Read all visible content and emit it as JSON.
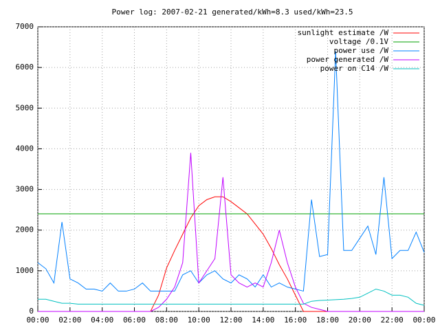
{
  "chart_data": {
    "type": "line",
    "title": "Power log: 2007-02-21 generated/kWh=8.3 used/kWh=23.5",
    "x": [
      0,
      0.5,
      1,
      1.5,
      2,
      2.5,
      3,
      3.5,
      4,
      4.5,
      5,
      5.5,
      6,
      6.5,
      7,
      7.5,
      8,
      8.5,
      9,
      9.5,
      10,
      10.5,
      11,
      11.5,
      12,
      12.5,
      13,
      13.5,
      14,
      14.5,
      15,
      15.5,
      16,
      16.5,
      17,
      17.5,
      18,
      18.5,
      19,
      19.5,
      20,
      20.5,
      21,
      21.5,
      22,
      22.5,
      23,
      23.5,
      24
    ],
    "xlim": [
      0,
      24
    ],
    "xticks": [
      {
        "value": 0,
        "label": "00:00"
      },
      {
        "value": 2,
        "label": "02:00"
      },
      {
        "value": 4,
        "label": "04:00"
      },
      {
        "value": 6,
        "label": "06:00"
      },
      {
        "value": 8,
        "label": "08:00"
      },
      {
        "value": 10,
        "label": "10:00"
      },
      {
        "value": 12,
        "label": "12:00"
      },
      {
        "value": 14,
        "label": "14:00"
      },
      {
        "value": 16,
        "label": "16:00"
      },
      {
        "value": 18,
        "label": "18:00"
      },
      {
        "value": 20,
        "label": "20:00"
      },
      {
        "value": 22,
        "label": "22:00"
      },
      {
        "value": 24,
        "label": "00:00"
      }
    ],
    "ylim": [
      0,
      7000
    ],
    "yticks": [
      0,
      1000,
      2000,
      3000,
      4000,
      5000,
      6000,
      7000
    ],
    "grid": true,
    "legend": "top-right",
    "series": [
      {
        "name": "sunlight estimate /W",
        "color": "#ff0000",
        "values": [
          0,
          0,
          0,
          0,
          0,
          0,
          0,
          0,
          0,
          0,
          0,
          0,
          0,
          0,
          0,
          400,
          1070,
          1500,
          1900,
          2300,
          2600,
          2750,
          2820,
          2820,
          2700,
          2550,
          2400,
          2150,
          1900,
          1550,
          1150,
          800,
          400,
          0,
          0,
          0,
          0,
          0,
          0,
          0,
          0,
          0,
          0,
          0,
          0,
          0,
          0,
          0,
          0
        ]
      },
      {
        "name": "voltage /0.1V",
        "color": "#00a000",
        "values": [
          2400,
          2400,
          2400,
          2400,
          2400,
          2400,
          2400,
          2400,
          2400,
          2400,
          2400,
          2400,
          2400,
          2400,
          2400,
          2400,
          2400,
          2400,
          2400,
          2400,
          2400,
          2400,
          2400,
          2400,
          2400,
          2400,
          2400,
          2400,
          2400,
          2400,
          2400,
          2400,
          2400,
          2400,
          2400,
          2400,
          2400,
          2400,
          2400,
          2400,
          2400,
          2400,
          2400,
          2400,
          2400,
          2400,
          2400,
          2400,
          2400
        ]
      },
      {
        "name": "power use /W",
        "color": "#0080ff",
        "values": [
          1200,
          1050,
          700,
          2200,
          800,
          700,
          550,
          550,
          500,
          700,
          500,
          500,
          550,
          700,
          500,
          500,
          500,
          500,
          900,
          1000,
          700,
          900,
          1000,
          800,
          700,
          900,
          800,
          600,
          900,
          600,
          700,
          600,
          550,
          500,
          2750,
          1350,
          1400,
          6400,
          1500,
          1500,
          1800,
          2100,
          1400,
          3300,
          1300,
          1500,
          1500,
          1950,
          1450
        ]
      },
      {
        "name": "power generated /W",
        "color": "#c000ff",
        "values": [
          0,
          0,
          0,
          0,
          0,
          0,
          0,
          0,
          0,
          0,
          0,
          0,
          0,
          0,
          0,
          100,
          300,
          600,
          1200,
          3900,
          700,
          1000,
          1300,
          3300,
          900,
          700,
          600,
          700,
          600,
          1200,
          2000,
          1200,
          600,
          200,
          100,
          50,
          0,
          0,
          0,
          0,
          0,
          0,
          0,
          0,
          0,
          0,
          0,
          0,
          0
        ]
      },
      {
        "name": "power on C14 /W",
        "color": "#00c0c0",
        "values": [
          300,
          300,
          250,
          200,
          200,
          180,
          180,
          180,
          180,
          180,
          180,
          180,
          180,
          180,
          180,
          180,
          180,
          180,
          180,
          180,
          180,
          180,
          180,
          180,
          180,
          180,
          180,
          180,
          180,
          180,
          180,
          180,
          180,
          180,
          250,
          270,
          280,
          290,
          300,
          320,
          350,
          450,
          550,
          500,
          400,
          400,
          350,
          200,
          150
        ]
      }
    ]
  }
}
